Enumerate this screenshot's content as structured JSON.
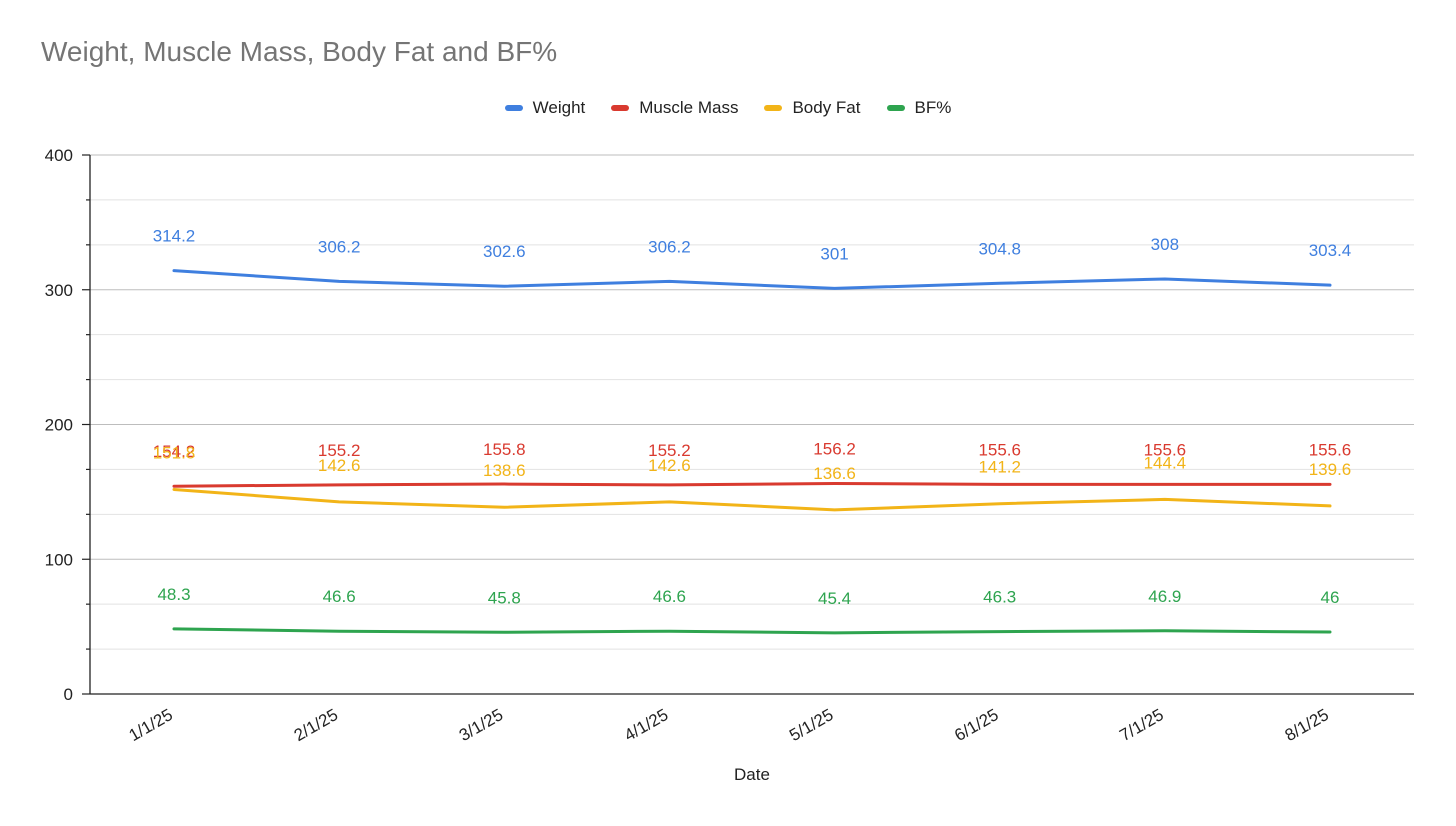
{
  "chart_data": {
    "type": "line",
    "title": "Weight, Muscle Mass, Body Fat and BF%",
    "xlabel": "Date",
    "ylabel": "",
    "ylim": [
      0,
      400
    ],
    "yticks": [
      0,
      100,
      200,
      300,
      400
    ],
    "categories": [
      "1/1/25",
      "2/1/25",
      "3/1/25",
      "4/1/25",
      "5/1/25",
      "6/1/25",
      "7/1/25",
      "8/1/25"
    ],
    "legend_position": "top",
    "grid": true,
    "series": [
      {
        "name": "Weight",
        "color": "#3f7fdf",
        "values": [
          314.2,
          306.2,
          302.6,
          306.2,
          301,
          304.8,
          308,
          303.4
        ],
        "labels": [
          "314.2",
          "306.2",
          "302.6",
          "306.2",
          "301",
          "304.8",
          "308",
          "303.4"
        ]
      },
      {
        "name": "Muscle Mass",
        "color": "#d93a2f",
        "values": [
          154.2,
          155.2,
          155.8,
          155.2,
          156.2,
          155.6,
          155.6,
          155.6
        ],
        "labels": [
          "154.2",
          "155.2",
          "155.8",
          "155.2",
          "156.2",
          "155.6",
          "155.6",
          "155.6"
        ]
      },
      {
        "name": "Body Fat",
        "color": "#f2b418",
        "values": [
          151.8,
          142.6,
          138.6,
          142.6,
          136.6,
          141.2,
          144.4,
          139.6
        ],
        "labels": [
          "151.8",
          "142.6",
          "138.6",
          "142.6",
          "136.6",
          "141.2",
          "144.4",
          "139.6"
        ]
      },
      {
        "name": "BF%",
        "color": "#2ea44f",
        "values": [
          48.3,
          46.6,
          45.8,
          46.6,
          45.4,
          46.3,
          46.9,
          46
        ],
        "labels": [
          "48.3",
          "46.6",
          "45.8",
          "46.6",
          "45.4",
          "46.3",
          "46.9",
          "46"
        ]
      }
    ]
  }
}
